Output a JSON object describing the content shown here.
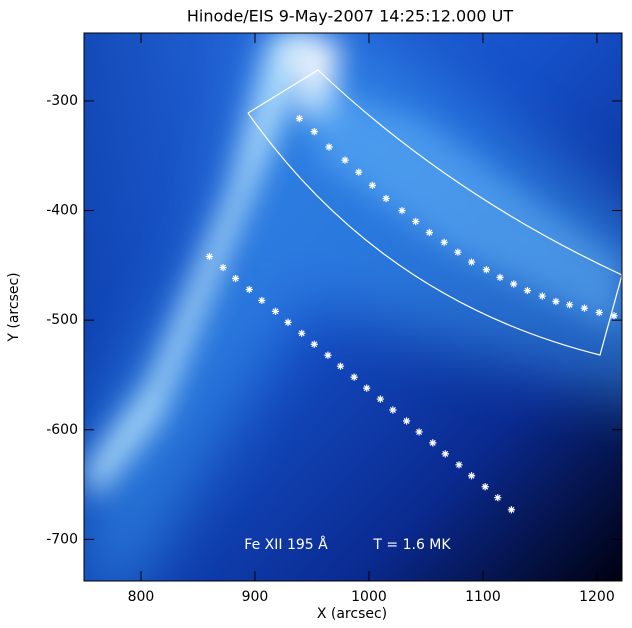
{
  "chart_data": {
    "type": "scatter",
    "title": "Hinode/EIS   9-May-2007 14:25:12.000 UT",
    "x_label": "X (arcsec)",
    "y_label": "Y (arcsec)",
    "annotation_1": "Fe XII 195 Å",
    "annotation_2": "T = 1.6 MK",
    "xlim": [
      750,
      1222
    ],
    "ylim": [
      -738,
      -238
    ],
    "xticks": [
      800,
      900,
      1000,
      1100,
      1200
    ],
    "yticks": [
      -300,
      -400,
      -500,
      -600,
      -700
    ],
    "series": [
      {
        "color": "#ffffff",
        "x": [
          939,
          952,
          965,
          979,
          991,
          1003,
          1015,
          1029,
          1041,
          1053,
          1066,
          1078,
          1090,
          1103,
          1115,
          1127,
          1139,
          1152,
          1164,
          1176,
          1189,
          1202,
          1215
        ],
        "y": [
          -316,
          -328,
          -342,
          -354,
          -365,
          -377,
          -389,
          -400,
          -410,
          -420,
          -429,
          -438,
          -447,
          -454,
          -461,
          -467,
          -473,
          -478,
          -483,
          -486,
          -489,
          -493,
          -496
        ]
      },
      {
        "color": "#ffffff",
        "x": [
          860,
          872,
          883,
          895,
          906,
          918,
          929,
          941,
          952,
          964,
          975,
          987,
          998,
          1010,
          1021,
          1033,
          1044,
          1056,
          1067,
          1079,
          1090,
          1102,
          1113,
          1125
        ],
        "y": [
          -442,
          -452,
          -462,
          -472,
          -482,
          -492,
          -502,
          -512,
          -522,
          -532,
          -542,
          -552,
          -562,
          -572,
          -582,
          -592,
          -602,
          -612,
          -622,
          -632,
          -642,
          -652,
          -662,
          -673
        ]
      }
    ]
  }
}
